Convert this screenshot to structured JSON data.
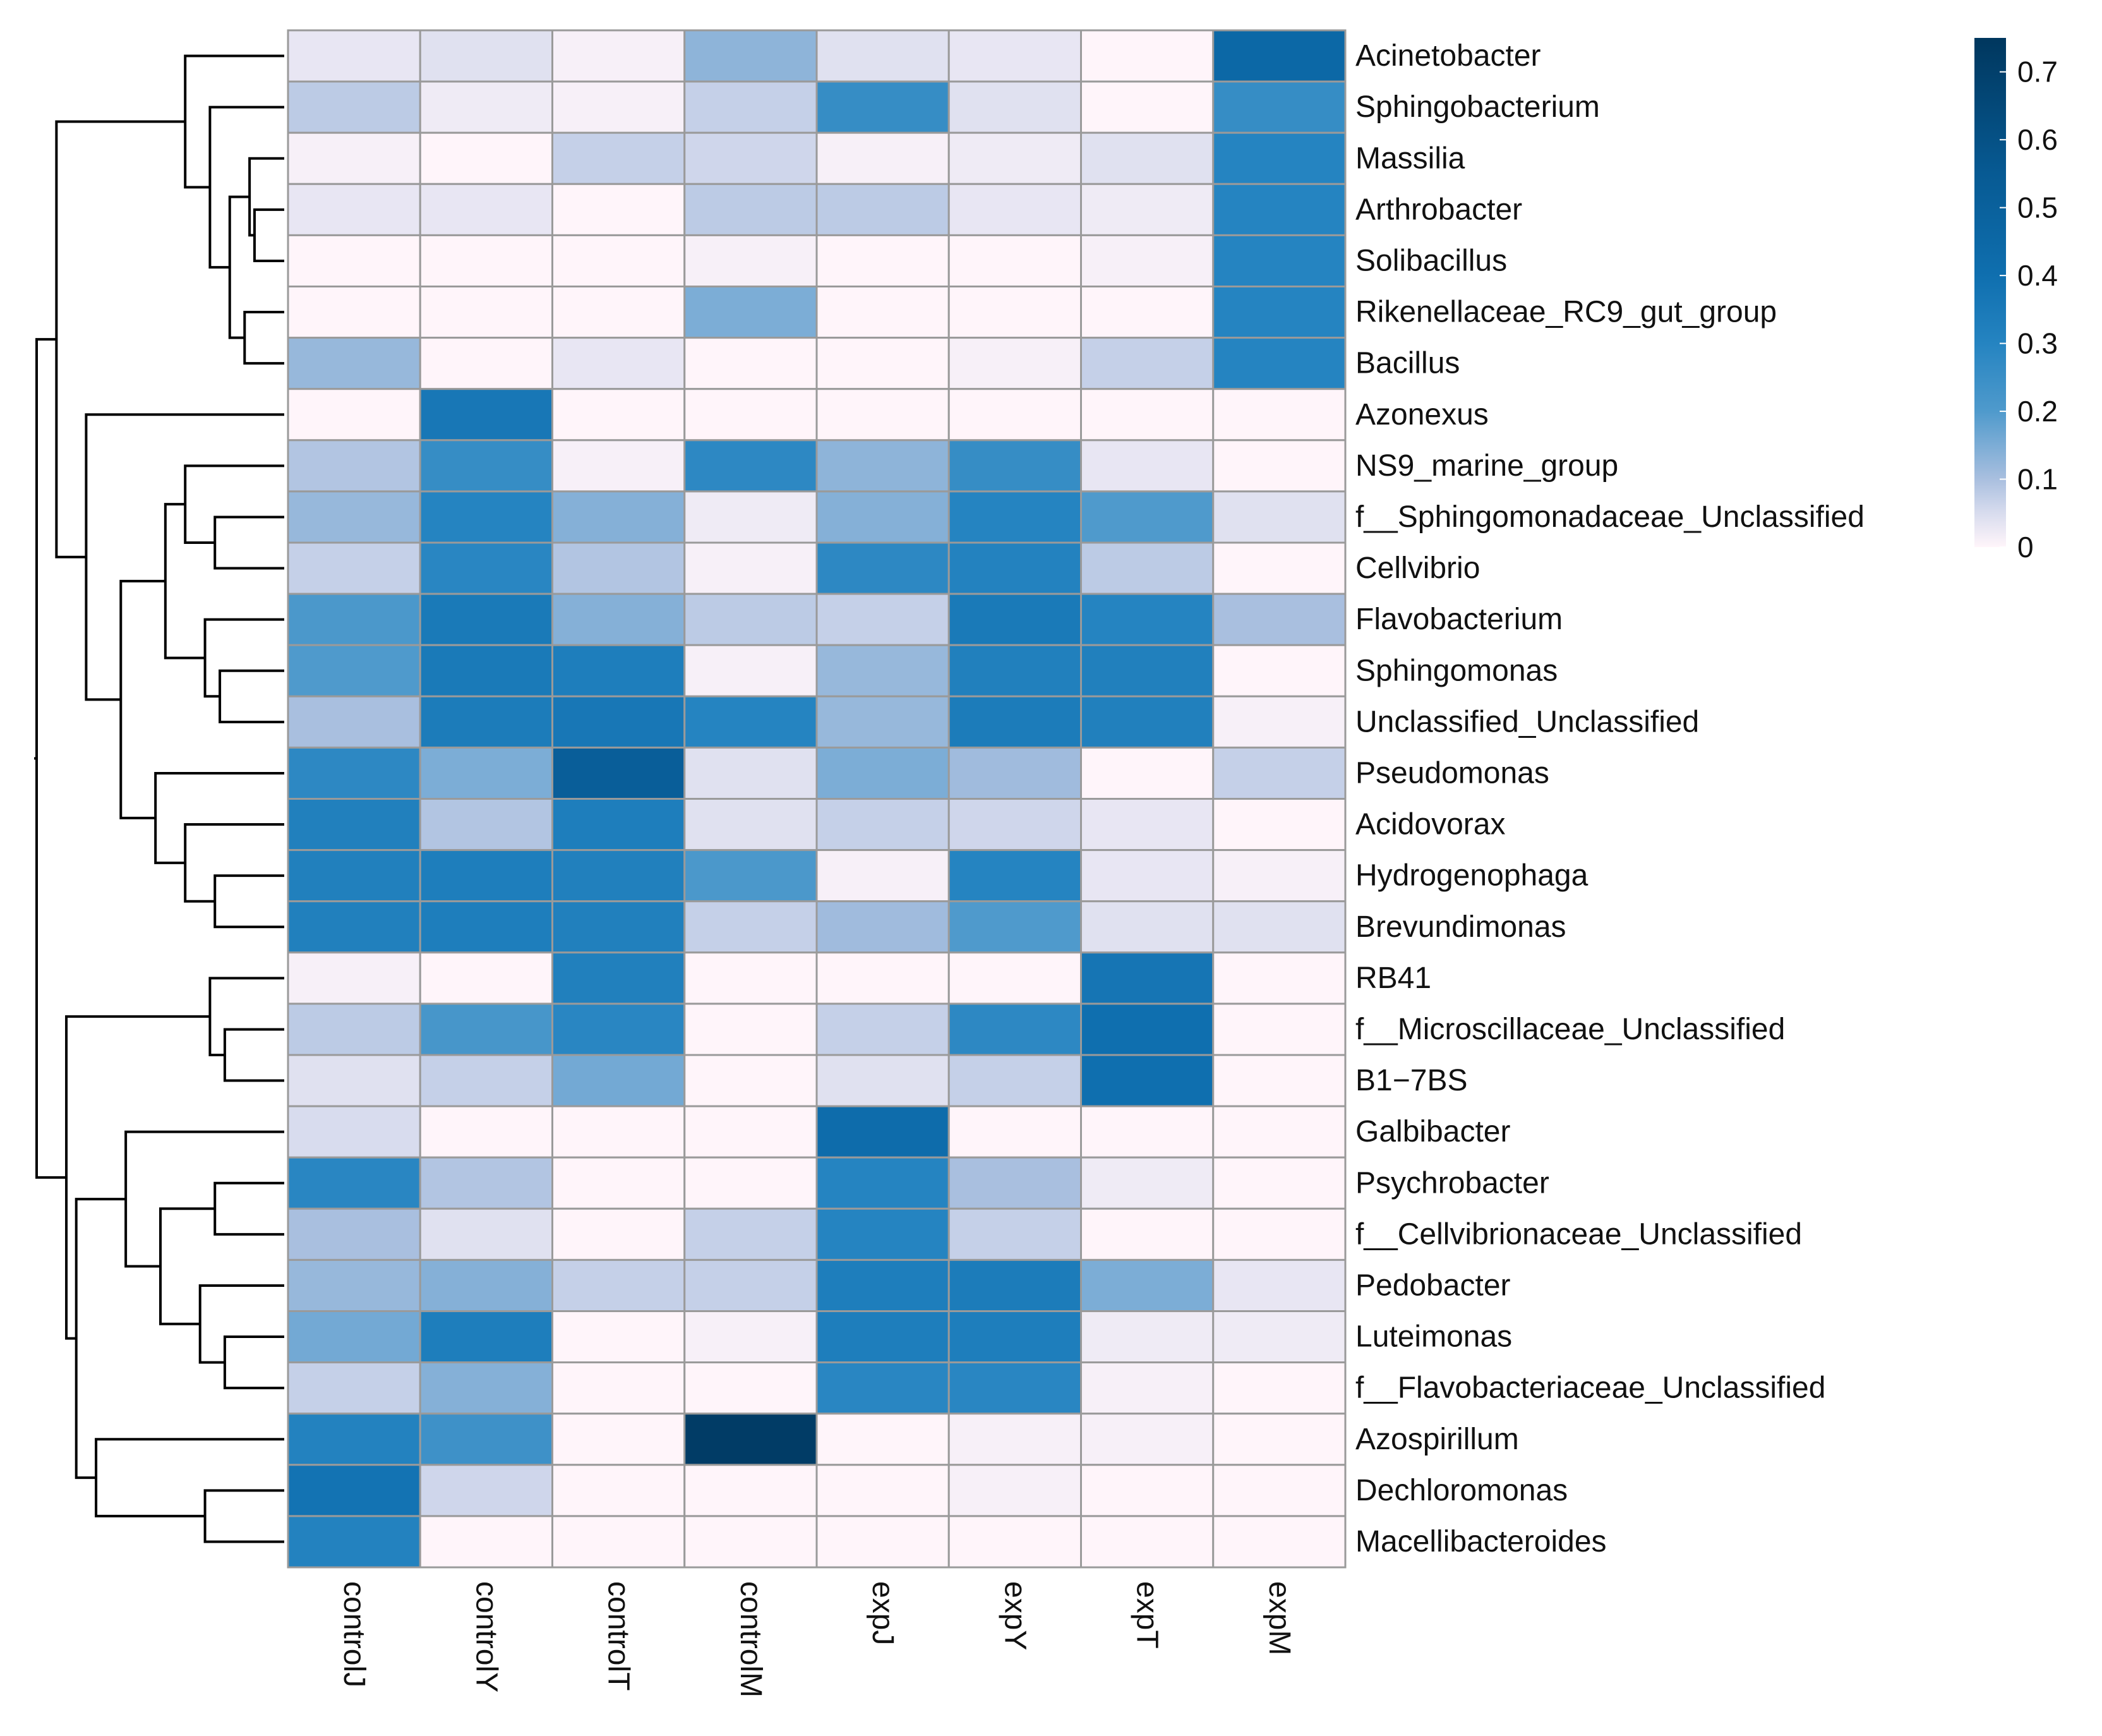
{
  "chart_data": {
    "type": "heatmap",
    "title": "",
    "rows": [
      "Acinetobacter",
      "Sphingobacterium",
      "Massilia",
      "Arthrobacter",
      "Solibacillus",
      "Rikenellaceae_RC9_gut_group",
      "Bacillus",
      "Azonexus",
      "NS9_marine_group",
      "f__Sphingomonadaceae_Unclassified",
      "Cellvibrio",
      "Flavobacterium",
      "Sphingomonas",
      "Unclassified_Unclassified",
      "Pseudomonas",
      "Acidovorax",
      "Hydrogenophaga",
      "Brevundimonas",
      "RB41",
      "f__Microscillaceae_Unclassified",
      "B1−7BS",
      "Galbibacter",
      "Psychrobacter",
      "f__Cellvibrionaceae_Unclassified",
      "Pedobacter",
      "Luteimonas",
      "f__Flavobacteriaceae_Unclassified",
      "Azospirillum",
      "Dechloromonas",
      "Macellibacteroides"
    ],
    "columns": [
      "controlJ",
      "controlY",
      "controlT",
      "controlM",
      "expJ",
      "expY",
      "expT",
      "expM"
    ],
    "values": [
      [
        0.03,
        0.04,
        0.01,
        0.13,
        0.04,
        0.03,
        0.0,
        0.45
      ],
      [
        0.08,
        0.02,
        0.01,
        0.07,
        0.26,
        0.04,
        0.0,
        0.26
      ],
      [
        0.01,
        0.0,
        0.07,
        0.06,
        0.01,
        0.02,
        0.04,
        0.3
      ],
      [
        0.03,
        0.03,
        0.0,
        0.08,
        0.08,
        0.03,
        0.02,
        0.3
      ],
      [
        0.0,
        0.0,
        0.0,
        0.01,
        0.0,
        0.0,
        0.01,
        0.3
      ],
      [
        0.0,
        0.0,
        0.0,
        0.15,
        0.0,
        0.0,
        0.0,
        0.3
      ],
      [
        0.12,
        0.0,
        0.03,
        0.0,
        0.0,
        0.01,
        0.07,
        0.3
      ],
      [
        0.0,
        0.36,
        0.0,
        0.0,
        0.0,
        0.0,
        0.0,
        0.0
      ],
      [
        0.09,
        0.26,
        0.01,
        0.28,
        0.13,
        0.26,
        0.03,
        0.0
      ],
      [
        0.12,
        0.3,
        0.14,
        0.02,
        0.14,
        0.3,
        0.2,
        0.04
      ],
      [
        0.07,
        0.29,
        0.09,
        0.01,
        0.28,
        0.31,
        0.08,
        0.0
      ],
      [
        0.21,
        0.35,
        0.14,
        0.08,
        0.07,
        0.35,
        0.3,
        0.1
      ],
      [
        0.2,
        0.35,
        0.33,
        0.01,
        0.12,
        0.32,
        0.32,
        0.0
      ],
      [
        0.1,
        0.34,
        0.36,
        0.3,
        0.12,
        0.34,
        0.32,
        0.01
      ],
      [
        0.28,
        0.15,
        0.52,
        0.04,
        0.15,
        0.11,
        0.0,
        0.07
      ],
      [
        0.32,
        0.09,
        0.33,
        0.04,
        0.07,
        0.06,
        0.03,
        0.0
      ],
      [
        0.32,
        0.33,
        0.32,
        0.21,
        0.01,
        0.3,
        0.03,
        0.01
      ],
      [
        0.32,
        0.33,
        0.32,
        0.07,
        0.11,
        0.2,
        0.04,
        0.04
      ],
      [
        0.01,
        0.0,
        0.32,
        0.0,
        0.0,
        0.0,
        0.37,
        0.0
      ],
      [
        0.08,
        0.22,
        0.29,
        0.0,
        0.07,
        0.28,
        0.4,
        0.0
      ],
      [
        0.04,
        0.07,
        0.16,
        0.0,
        0.04,
        0.07,
        0.4,
        0.0
      ],
      [
        0.05,
        0.0,
        0.0,
        0.0,
        0.42,
        0.0,
        0.0,
        0.0
      ],
      [
        0.29,
        0.09,
        0.0,
        0.0,
        0.3,
        0.1,
        0.02,
        0.0
      ],
      [
        0.1,
        0.04,
        0.0,
        0.07,
        0.3,
        0.07,
        0.0,
        0.0
      ],
      [
        0.12,
        0.14,
        0.07,
        0.07,
        0.33,
        0.34,
        0.15,
        0.03
      ],
      [
        0.16,
        0.33,
        0.0,
        0.01,
        0.33,
        0.33,
        0.02,
        0.02
      ],
      [
        0.07,
        0.14,
        0.0,
        0.0,
        0.29,
        0.29,
        0.01,
        0.0
      ],
      [
        0.31,
        0.24,
        0.0,
        0.72,
        0.0,
        0.01,
        0.01,
        0.0
      ],
      [
        0.38,
        0.06,
        0.0,
        0.0,
        0.0,
        0.01,
        0.0,
        0.0
      ],
      [
        0.31,
        0.0,
        0.0,
        0.0,
        0.0,
        0.0,
        0.0,
        0.0
      ]
    ],
    "colorbar": {
      "min": 0,
      "max": 0.75,
      "ticks": [
        {
          "value": 0,
          "label": "0"
        },
        {
          "value": 0.1,
          "label": "0.1"
        },
        {
          "value": 0.2,
          "label": "0.2"
        },
        {
          "value": 0.3,
          "label": "0.3"
        },
        {
          "value": 0.4,
          "label": "0.4"
        },
        {
          "value": 0.5,
          "label": "0.5"
        },
        {
          "value": 0.6,
          "label": "0.6"
        },
        {
          "value": 0.7,
          "label": "0.7"
        }
      ],
      "color_stops": [
        {
          "value": 0,
          "color": "#fff5fa"
        },
        {
          "value": 0.05,
          "color": "#d8dcee"
        },
        {
          "value": 0.1,
          "color": "#a9bfdf"
        },
        {
          "value": 0.2,
          "color": "#4f9acc"
        },
        {
          "value": 0.3,
          "color": "#2584c1"
        },
        {
          "value": 0.4,
          "color": "#0f6faf"
        },
        {
          "value": 0.55,
          "color": "#075a93"
        },
        {
          "value": 0.75,
          "color": "#00375e"
        }
      ]
    },
    "row_dendrogram": {
      "merges": [
        [
          4,
          3,
          0.06
        ],
        [
          2,
          30,
          0.07
        ],
        [
          5,
          6,
          0.08
        ],
        [
          31,
          32,
          0.11
        ],
        [
          1,
          33,
          0.15
        ],
        [
          0,
          34,
          0.2
        ],
        [
          12,
          13,
          0.13
        ],
        [
          11,
          36,
          0.16
        ],
        [
          9,
          10,
          0.14
        ],
        [
          8,
          38,
          0.2
        ],
        [
          37,
          39,
          0.24
        ],
        [
          16,
          17,
          0.14
        ],
        [
          15,
          41,
          0.2
        ],
        [
          14,
          42,
          0.26
        ],
        [
          40,
          43,
          0.33
        ],
        [
          7,
          44,
          0.4
        ],
        [
          35,
          45,
          0.46
        ],
        [
          19,
          20,
          0.12
        ],
        [
          18,
          47,
          0.15
        ],
        [
          22,
          23,
          0.14
        ],
        [
          25,
          26,
          0.12
        ],
        [
          24,
          50,
          0.17
        ],
        [
          49,
          51,
          0.25
        ],
        [
          21,
          52,
          0.32
        ],
        [
          28,
          29,
          0.16
        ],
        [
          27,
          54,
          0.38
        ],
        [
          53,
          55,
          0.42
        ],
        [
          48,
          56,
          0.44
        ],
        [
          46,
          57,
          0.5
        ]
      ]
    }
  }
}
